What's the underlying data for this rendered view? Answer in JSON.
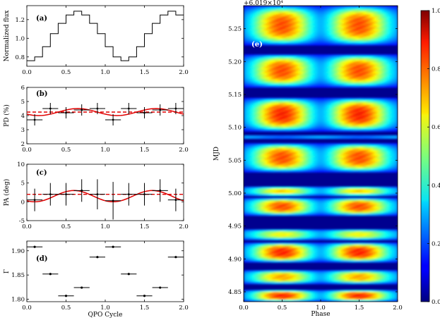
{
  "chart_data": [
    {
      "panel": "(a)",
      "type": "line",
      "title": "",
      "xlabel": "",
      "ylabel": "Normalized flux",
      "xlim": [
        0,
        2
      ],
      "ylim": [
        0.7,
        1.35
      ],
      "xticks": [
        "0.0",
        "0.5",
        "1.0",
        "1.5",
        "2.0"
      ],
      "yticks": [
        "0.8",
        "1.0",
        "1.2"
      ],
      "x": [
        0.0,
        0.1,
        0.2,
        0.3,
        0.4,
        0.5,
        0.6,
        0.7,
        0.8,
        0.9,
        1.0,
        1.1,
        1.2,
        1.3,
        1.4,
        1.5,
        1.6,
        1.7,
        1.8,
        1.9
      ],
      "values": [
        0.76,
        0.8,
        0.91,
        1.05,
        1.16,
        1.25,
        1.29,
        1.25,
        1.16,
        1.05,
        0.91,
        0.8,
        0.76,
        0.8,
        0.91,
        1.05,
        1.16,
        1.25,
        1.29,
        1.25
      ],
      "step": true
    },
    {
      "panel": "(b)",
      "type": "scatter",
      "ylabel": "PD (%)",
      "xlim": [
        0,
        2
      ],
      "ylim": [
        2,
        6
      ],
      "xticks": [
        "0.0",
        "0.5",
        "1.0",
        "1.5",
        "2.0"
      ],
      "yticks": [
        "2",
        "3",
        "4",
        "5",
        "6"
      ],
      "x": [
        0.1,
        0.3,
        0.5,
        0.7,
        0.9,
        1.1,
        1.3,
        1.5,
        1.7,
        1.9
      ],
      "values": [
        3.7,
        4.5,
        4.2,
        4.4,
        4.5,
        3.7,
        4.5,
        4.2,
        4.4,
        4.5
      ],
      "yerr": [
        0.4,
        0.4,
        0.4,
        0.4,
        0.4,
        0.4,
        0.4,
        0.4,
        0.4,
        0.4
      ],
      "xerr": 0.1,
      "model_mean": 4.25,
      "model_amp": 0.25,
      "model_peak": 0.65,
      "mean_line": 4.25
    },
    {
      "panel": "(c)",
      "type": "scatter",
      "ylabel": "PA (deg)",
      "xlim": [
        0,
        2
      ],
      "ylim": [
        -5,
        10
      ],
      "xticks": [
        "0.0",
        "0.5",
        "1.0",
        "1.5",
        "2.0"
      ],
      "yticks": [
        "-5",
        "0",
        "5",
        "10"
      ],
      "x": [
        0.1,
        0.3,
        0.5,
        0.7,
        0.9,
        1.1,
        1.3,
        1.5,
        1.7,
        1.9
      ],
      "values": [
        0.5,
        2.0,
        2.0,
        3.0,
        2.0,
        0.3,
        2.0,
        2.0,
        3.0,
        0.5
      ],
      "yerr": [
        3.0,
        3.0,
        3.0,
        3.0,
        4.0,
        5.0,
        3.0,
        3.0,
        3.0,
        3.0
      ],
      "xerr": 0.1,
      "model_mean": 1.5,
      "model_amp": 1.5,
      "model_peak": 0.6,
      "mean_line": 2.0
    },
    {
      "panel": "(d)",
      "type": "scatter",
      "ylabel": "Γ",
      "xlabel": "QPO Cycle",
      "xlim": [
        0,
        2
      ],
      "ylim": [
        1.795,
        1.92
      ],
      "xticks": [
        "0.0",
        "0.5",
        "1.0",
        "1.5",
        "2.0"
      ],
      "yticks": [
        "1.80",
        "1.85",
        "1.90"
      ],
      "x": [
        0.1,
        0.3,
        0.5,
        0.7,
        0.9,
        1.1,
        1.3,
        1.5,
        1.7,
        1.9
      ],
      "values": [
        1.908,
        1.852,
        1.807,
        1.824,
        1.887,
        1.908,
        1.852,
        1.807,
        1.824,
        1.887
      ],
      "xerr": 0.1
    },
    {
      "panel": "(e)",
      "type": "heatmap",
      "xlabel": "Phase",
      "ylabel": "MJD",
      "offset_label": "+6.019×10⁴",
      "xlim": [
        0,
        2
      ],
      "ylim": [
        4.835,
        5.285
      ],
      "xticks": [
        "0.0",
        "0.5",
        "1.0",
        "1.5",
        "2.0"
      ],
      "yticks": [
        "4.85",
        "4.90",
        "4.95",
        "5.00",
        "5.05",
        "5.10",
        "5.15",
        "5.20",
        "5.25"
      ],
      "bands": [
        {
          "y0": 5.225,
          "y1": 5.285,
          "intensity": 0.85
        },
        {
          "y0": 5.161,
          "y1": 5.211,
          "intensity": 0.85
        },
        {
          "y0": 5.094,
          "y1": 5.145,
          "intensity": 0.9
        },
        {
          "y0": 5.083,
          "y1": 5.088,
          "intensity": 0.22
        },
        {
          "y0": 5.032,
          "y1": 5.076,
          "intensity": 0.85
        },
        {
          "y0": 4.996,
          "y1": 5.01,
          "intensity": 0.7
        },
        {
          "y0": 4.966,
          "y1": 4.993,
          "intensity": 0.85
        },
        {
          "y0": 4.929,
          "y1": 4.945,
          "intensity": 0.65
        },
        {
          "y0": 4.895,
          "y1": 4.925,
          "intensity": 0.9
        },
        {
          "y0": 4.862,
          "y1": 4.883,
          "intensity": 0.75
        },
        {
          "y0": 4.835,
          "y1": 4.853,
          "intensity": 0.9
        }
      ],
      "colorbar": {
        "min": 0.0,
        "max": 1.0,
        "ticks": [
          "0.0",
          "0.2",
          "0.4",
          "0.6",
          "0.8",
          "1.0"
        ],
        "colormap": "jet"
      }
    }
  ]
}
